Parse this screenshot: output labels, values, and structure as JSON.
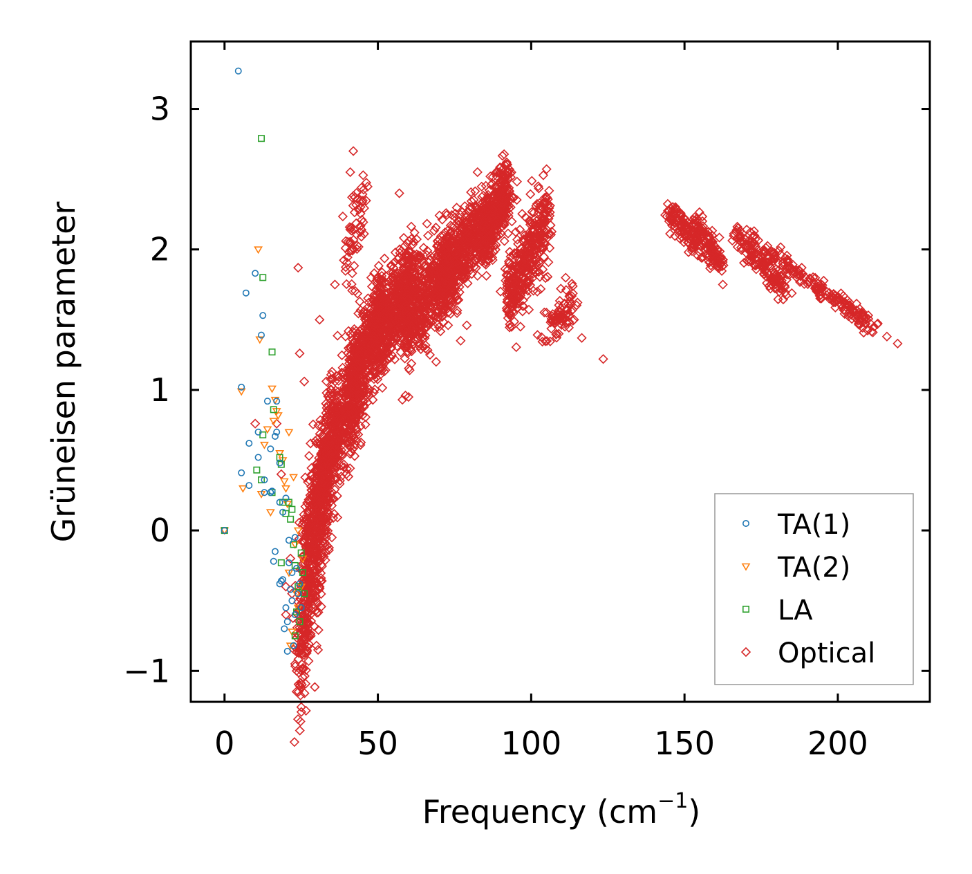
{
  "chart_data": {
    "type": "scatter",
    "title": "",
    "xlabel": "Frequency (cm",
    "xlabel_superscript": "−1",
    "xlabel_suffix": ")",
    "ylabel": "Grüneisen parameter",
    "xlim": [
      -11,
      230
    ],
    "ylim": [
      -1.22,
      3.48
    ],
    "xticks": [
      0,
      50,
      100,
      150,
      200
    ],
    "xtick_labels": [
      "0",
      "50",
      "100",
      "150",
      "200"
    ],
    "yticks": [
      -1,
      0,
      1,
      2,
      3
    ],
    "ytick_labels": [
      "−1",
      "0",
      "1",
      "2",
      "3"
    ],
    "legend_position": "bottom-right",
    "series": [
      {
        "name": "TA(1)",
        "marker": "circle",
        "color": "#1f77b4",
        "points": [
          [
            0,
            0
          ],
          [
            4.5,
            3.27
          ],
          [
            5.5,
            1.02
          ],
          [
            5.5,
            0.41
          ],
          [
            7,
            1.69
          ],
          [
            8,
            0.62
          ],
          [
            8,
            0.32
          ],
          [
            10,
            1.83
          ],
          [
            11,
            0.52
          ],
          [
            12,
            1.39
          ],
          [
            12.5,
            1.53
          ],
          [
            13,
            0.36
          ],
          [
            13,
            0.27
          ],
          [
            14,
            0.92
          ],
          [
            15,
            0.58
          ],
          [
            15.5,
            0.28
          ],
          [
            16,
            -0.22
          ],
          [
            16.5,
            -0.15
          ],
          [
            16.5,
            0.67
          ],
          [
            17,
            0.7
          ],
          [
            18,
            0.48
          ],
          [
            18,
            0.2
          ],
          [
            18,
            -0.38
          ],
          [
            18.5,
            -0.36
          ],
          [
            19,
            0.13
          ],
          [
            19,
            -0.35
          ],
          [
            19.5,
            -0.7
          ],
          [
            20,
            0.23
          ],
          [
            20,
            -0.55
          ],
          [
            20.5,
            -0.65
          ],
          [
            20.5,
            -0.86
          ],
          [
            21,
            -0.07
          ],
          [
            21,
            -0.23
          ],
          [
            21.5,
            -0.42
          ],
          [
            22,
            -0.3
          ],
          [
            22,
            -0.5
          ],
          [
            22.5,
            -0.82
          ],
          [
            23,
            -0.05
          ],
          [
            23,
            -0.6
          ],
          [
            23.5,
            -0.27
          ],
          [
            24,
            -0.45
          ],
          [
            24.5,
            -0.38
          ],
          [
            25,
            -0.55
          ],
          [
            15,
            0.27
          ],
          [
            17,
            0.92
          ],
          [
            11,
            0.7
          ]
        ]
      },
      {
        "name": "TA(2)",
        "marker": "triangle-down",
        "color": "#ff7f0e",
        "points": [
          [
            0,
            0
          ],
          [
            5.5,
            0.99
          ],
          [
            6,
            0.3
          ],
          [
            11,
            2.0
          ],
          [
            11.5,
            1.36
          ],
          [
            12,
            0.26
          ],
          [
            13,
            0.61
          ],
          [
            14,
            0.72
          ],
          [
            15,
            0.13
          ],
          [
            15.5,
            1.01
          ],
          [
            16,
            0.78
          ],
          [
            16.5,
            0.93
          ],
          [
            17,
            0.85
          ],
          [
            17.5,
            0.82
          ],
          [
            18,
            0.55
          ],
          [
            19,
            0.5
          ],
          [
            19.5,
            0.35
          ],
          [
            20,
            0.3
          ],
          [
            20.5,
            0.19
          ],
          [
            21,
            0.7
          ],
          [
            21,
            -0.3
          ],
          [
            21.5,
            -0.82
          ],
          [
            22,
            -0.72
          ],
          [
            22.5,
            0.38
          ],
          [
            23,
            -0.1
          ],
          [
            23.5,
            -0.45
          ],
          [
            24,
            0.0
          ],
          [
            24,
            -0.55
          ],
          [
            25,
            -0.4
          ],
          [
            25.5,
            -0.2
          ]
        ]
      },
      {
        "name": "LA",
        "marker": "square",
        "color": "#2ca02c",
        "points": [
          [
            0,
            0
          ],
          [
            12,
            2.79
          ],
          [
            12.5,
            1.8
          ],
          [
            15.5,
            1.27
          ],
          [
            16,
            0.86
          ],
          [
            10.5,
            0.43
          ],
          [
            12,
            0.36
          ],
          [
            12.5,
            0.68
          ],
          [
            15.5,
            0.27
          ],
          [
            18,
            0.52
          ],
          [
            18.5,
            0.47
          ],
          [
            18.5,
            -0.23
          ],
          [
            19,
            0.2
          ],
          [
            20,
            0.12
          ],
          [
            21,
            0.2
          ],
          [
            21.5,
            0.08
          ],
          [
            22,
            0.15
          ],
          [
            22.5,
            -0.1
          ],
          [
            23,
            -0.25
          ],
          [
            23.5,
            -0.58
          ],
          [
            24,
            -0.4
          ],
          [
            24.5,
            -0.65
          ],
          [
            25,
            -0.16
          ],
          [
            25.5,
            -0.3
          ],
          [
            26,
            -0.45
          ],
          [
            23,
            -0.75
          ]
        ]
      },
      {
        "name": "Optical",
        "marker": "diamond",
        "color": "#d62728",
        "clusters": [
          [
            24,
            33,
            -0.9,
            0.3,
            0.25,
            420
          ],
          [
            26,
            36,
            -0.2,
            0.8,
            0.22,
            380
          ],
          [
            32,
            44,
            0.3,
            1.25,
            0.18,
            420
          ],
          [
            40,
            52,
            0.8,
            1.65,
            0.18,
            480
          ],
          [
            48,
            62,
            1.3,
            1.85,
            0.15,
            560
          ],
          [
            58,
            74,
            1.45,
            1.9,
            0.15,
            560
          ],
          [
            70,
            86,
            1.75,
            2.25,
            0.13,
            560
          ],
          [
            84,
            93,
            2.05,
            2.45,
            0.12,
            380
          ],
          [
            92,
            106,
            1.65,
            2.25,
            0.14,
            380
          ],
          [
            104,
            114,
            1.4,
            1.65,
            0.08,
            70
          ],
          [
            145,
            156,
            2.27,
            2.0,
            0.05,
            130
          ],
          [
            154,
            162,
            2.18,
            1.88,
            0.05,
            110
          ],
          [
            167,
            183,
            2.12,
            1.73,
            0.05,
            170
          ],
          [
            180,
            212,
            1.95,
            1.44,
            0.03,
            170
          ],
          [
            40,
            46,
            2.0,
            2.35,
            0.15,
            60
          ]
        ],
        "outliers": [
          [
            42,
            2.7
          ],
          [
            41,
            2.55
          ],
          [
            36,
            1.75
          ],
          [
            31,
            1.5
          ],
          [
            24,
            1.87
          ],
          [
            24.5,
            1.26
          ],
          [
            26,
            1.06
          ],
          [
            123.5,
            1.22
          ],
          [
            116.5,
            1.37
          ],
          [
            109,
            1.4
          ],
          [
            105,
            1.55
          ],
          [
            111,
            1.45
          ],
          [
            114,
            1.5
          ],
          [
            95,
            1.65
          ],
          [
            90,
            1.7
          ],
          [
            82.5,
            2.55
          ],
          [
            92,
            2.62
          ],
          [
            57,
            2.4
          ],
          [
            60,
            0.95
          ],
          [
            58,
            0.93
          ],
          [
            59,
            0.96
          ],
          [
            30,
            -0.82
          ],
          [
            30.5,
            -0.85
          ],
          [
            31,
            -0.4
          ],
          [
            23.5,
            -1.0
          ],
          [
            23,
            -0.95
          ],
          [
            20,
            -0.4
          ],
          [
            21.5,
            -0.2
          ],
          [
            22,
            -0.45
          ],
          [
            33,
            0.0
          ],
          [
            34,
            0.07
          ],
          [
            35,
            -0.05
          ],
          [
            219.5,
            1.33
          ],
          [
            216,
            1.38
          ],
          [
            162.5,
            1.75
          ],
          [
            67,
            1.25
          ],
          [
            69,
            1.2
          ],
          [
            77,
            1.35
          ],
          [
            79,
            1.46
          ],
          [
            100,
            1.9
          ],
          [
            102,
            1.7
          ],
          [
            17,
            0.76
          ],
          [
            10,
            0.76
          ],
          [
            18.5,
            0.4
          ],
          [
            20,
            -0.6
          ]
        ]
      }
    ]
  }
}
